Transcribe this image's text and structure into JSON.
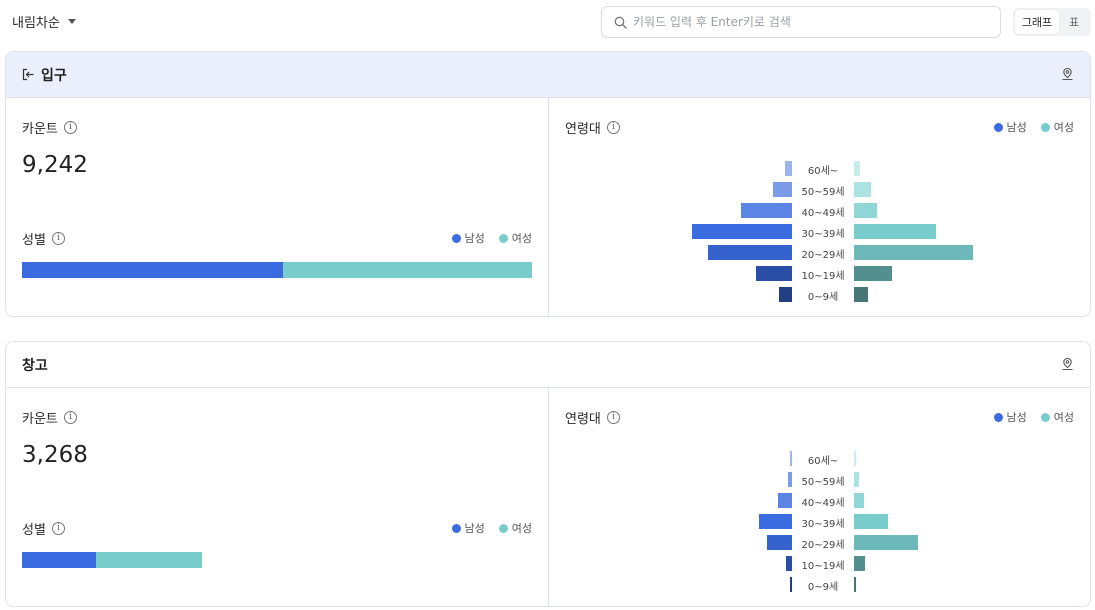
{
  "toolbar": {
    "sort_label": "내림차순",
    "search_placeholder": "키워드 입력 후 Enter키로 검색",
    "view_graph": "그래프",
    "view_table": "표"
  },
  "colors": {
    "male": "#3b6be0",
    "female": "#79cccc"
  },
  "legend": {
    "male": "남성",
    "female": "여성"
  },
  "labels": {
    "count": "카운트",
    "gender": "성별",
    "age": "연령대"
  },
  "age_groups": [
    "60세~",
    "50~59세",
    "40~49세",
    "30~39세",
    "20~29세",
    "10~19세",
    "0~9세"
  ],
  "male_shades": [
    "#9db4ee",
    "#7b9ce8",
    "#5b84e4",
    "#3b6be0",
    "#3562cc",
    "#2a4ea6",
    "#223f86"
  ],
  "female_shades": [
    "#c9ecec",
    "#abe2e2",
    "#90d6d6",
    "#79cccc",
    "#6db8b8",
    "#548f8f",
    "#467676"
  ],
  "cards": [
    {
      "title": "입구",
      "count": "9,242",
      "gender_share": {
        "male": 0.512,
        "female": 0.488
      },
      "gender_bar_fill": 1.0,
      "pyramid": {
        "male": [
          70,
          190,
          510,
          1000,
          840,
          360,
          130
        ],
        "female": [
          60,
          170,
          230,
          820,
          1190,
          380,
          140
        ]
      }
    },
    {
      "title": "창고",
      "count": "3,268",
      "gender_share": {
        "male": 0.41,
        "female": 0.59
      },
      "gender_bar_fill": 0.353,
      "pyramid": {
        "male": [
          25,
          40,
          140,
          330,
          250,
          65,
          15
        ],
        "female": [
          20,
          50,
          100,
          340,
          640,
          110,
          18
        ]
      }
    }
  ]
}
